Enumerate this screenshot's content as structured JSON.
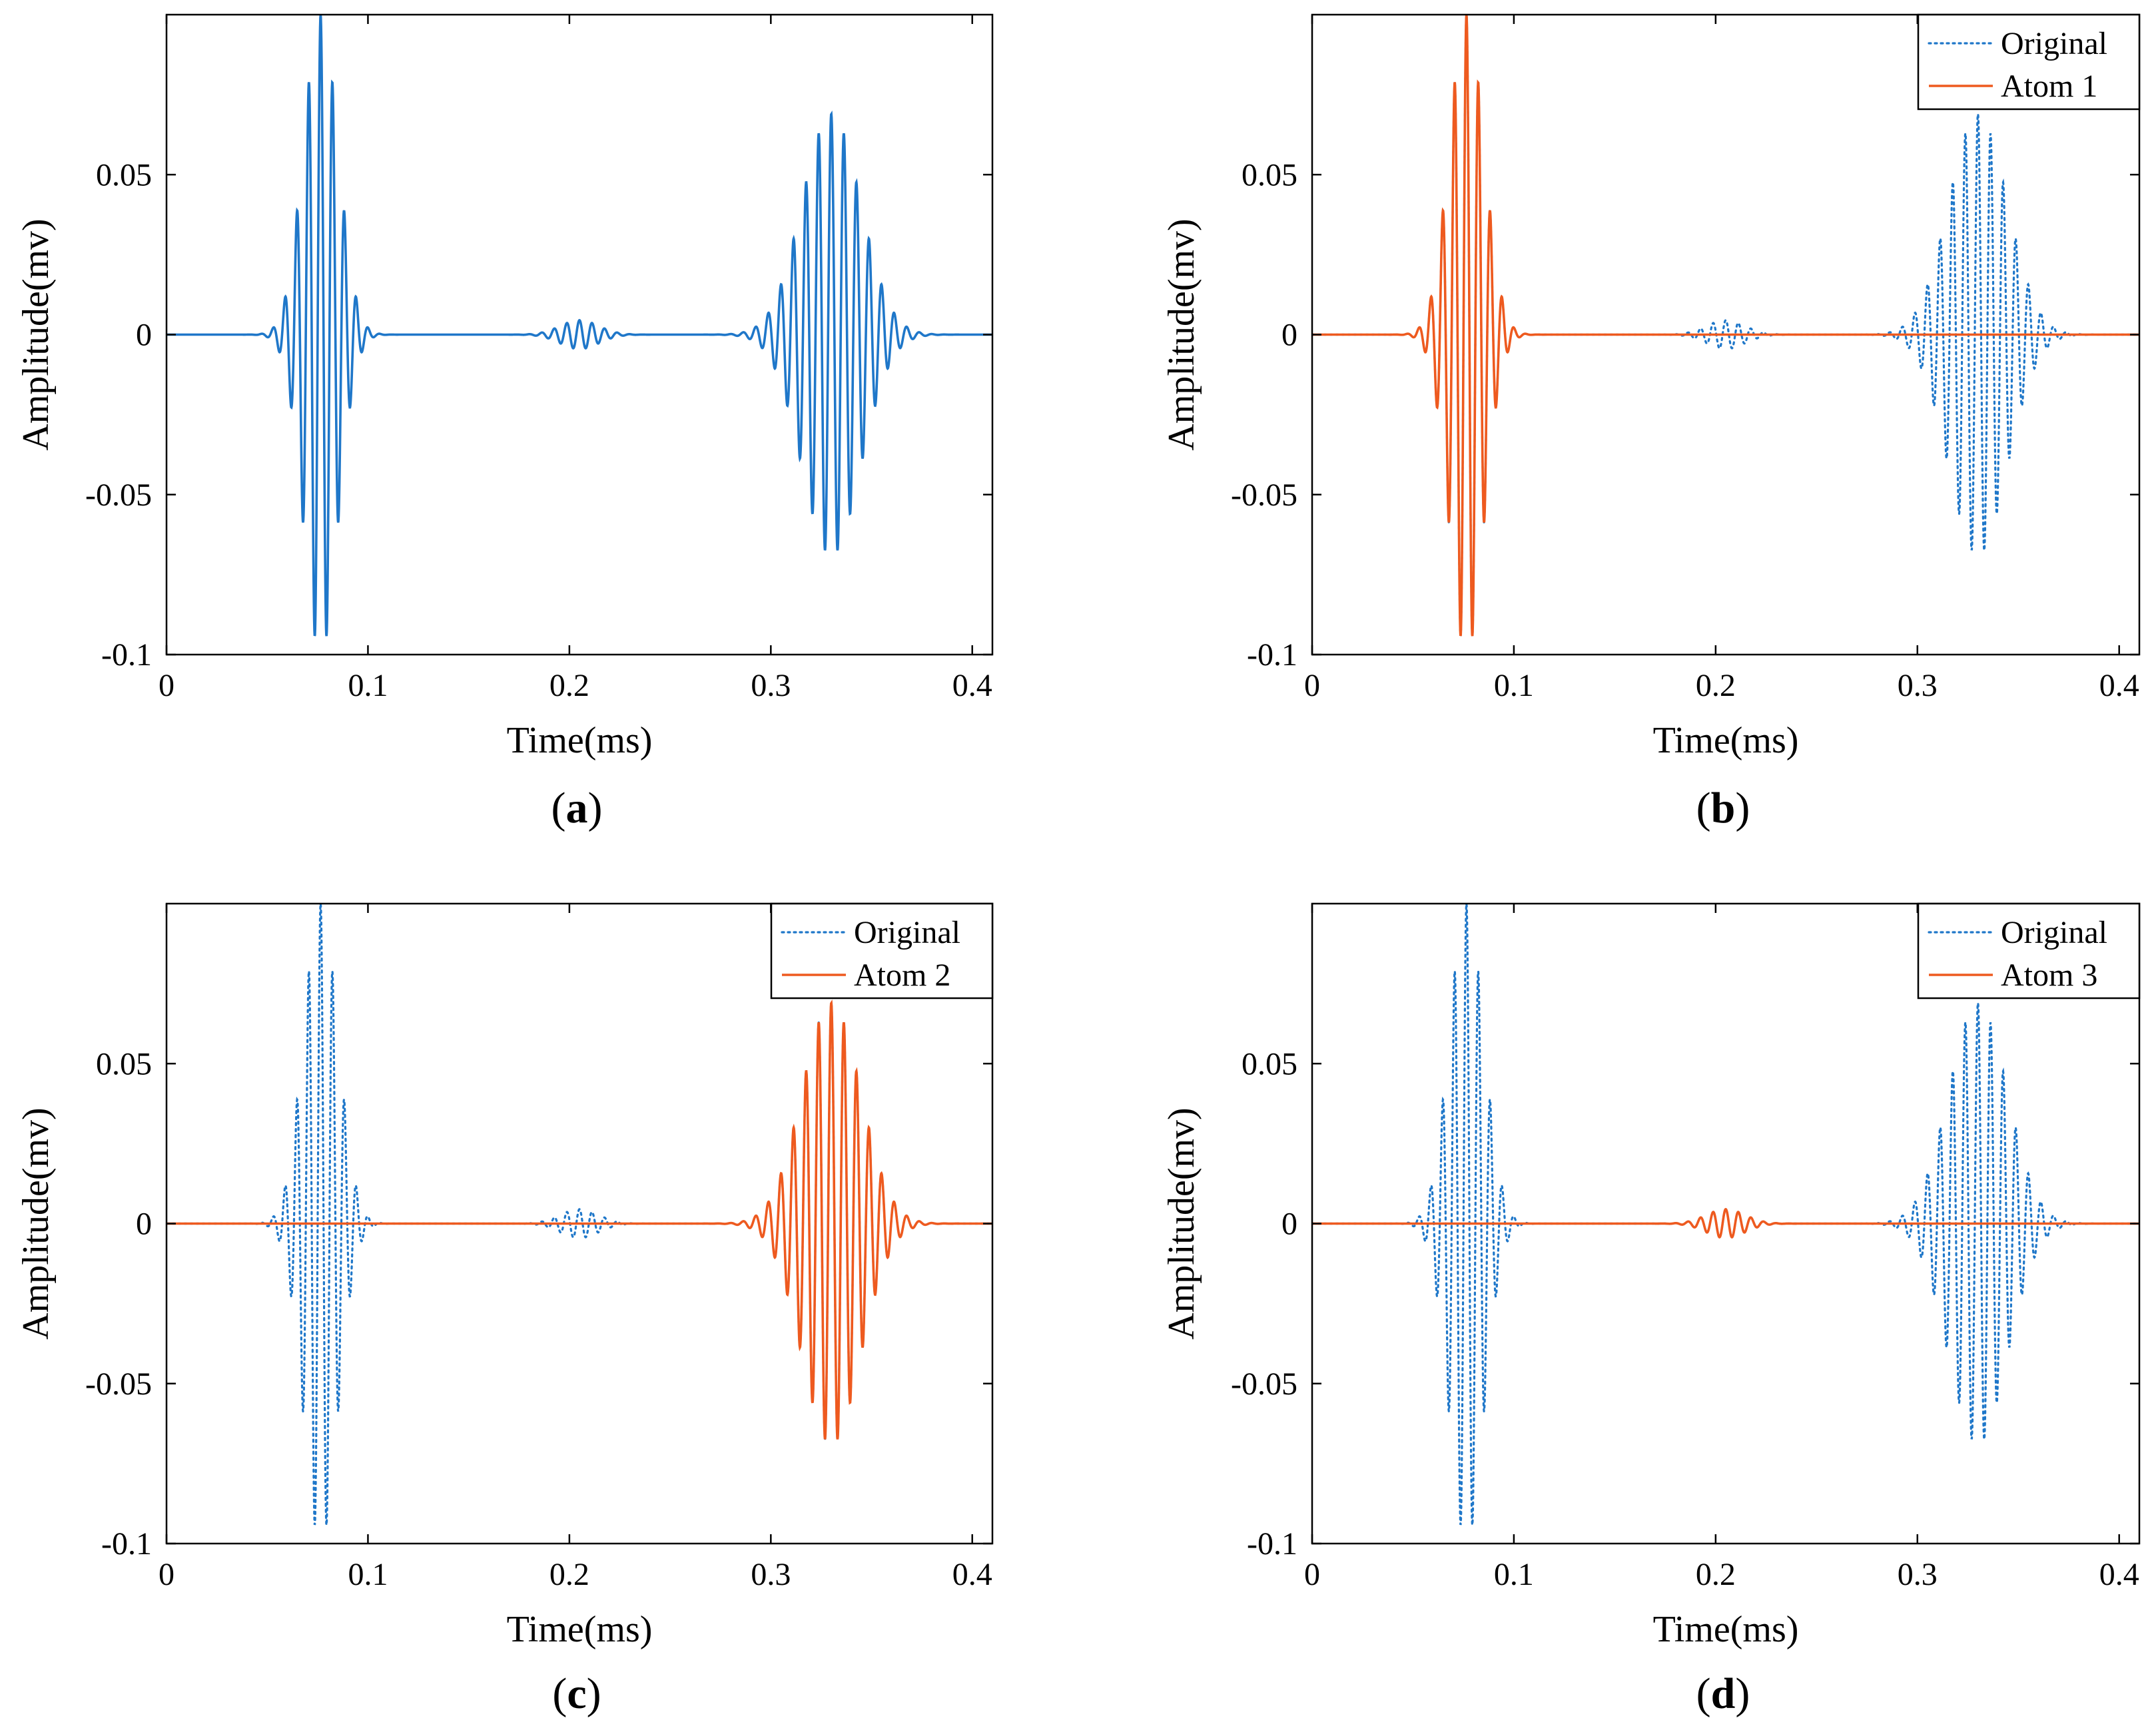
{
  "colors": {
    "original": "#1f77c9",
    "atom": "#ee5a1f",
    "axis": "#000000",
    "background": "#ffffff"
  },
  "chart_data": [
    {
      "id": "a",
      "type": "line",
      "caption_open": "(",
      "caption_letter": "a",
      "caption_close": ")",
      "xlabel": "Time(ms)",
      "ylabel": "Amplitude(mv)",
      "xlim": [
        0,
        0.41
      ],
      "ylim": [
        -0.1,
        0.1
      ],
      "xticks": [
        0,
        0.1,
        0.2,
        0.3,
        0.4
      ],
      "xtick_labels": [
        "0",
        "0.1",
        "0.2",
        "0.3",
        "0.4"
      ],
      "yticks": [
        0.05,
        0,
        -0.05,
        -0.1
      ],
      "ytick_labels": [
        "0.05",
        "0",
        "-0.05",
        "-0.1"
      ],
      "legend": null,
      "series": [
        {
          "name": "Original",
          "style": "solid",
          "color_key": "original",
          "wave_packets": [
            {
              "center_ms": 0.0765,
              "amplitude": 0.1,
              "width_ms": 0.0085,
              "freq_khz": 170
            },
            {
              "center_ms": 0.205,
              "amplitude": 0.0045,
              "width_ms": 0.0095,
              "freq_khz": 160
            },
            {
              "center_ms": 0.33,
              "amplitude": 0.069,
              "width_ms": 0.0145,
              "freq_khz": 160
            }
          ]
        }
      ]
    },
    {
      "id": "b",
      "type": "line",
      "caption_open": "(",
      "caption_letter": "b",
      "caption_close": ")",
      "xlabel": "Time(ms)",
      "ylabel": "Amplitude(mv)",
      "xlim": [
        0,
        0.41
      ],
      "ylim": [
        -0.1,
        0.1
      ],
      "xticks": [
        0,
        0.1,
        0.2,
        0.3,
        0.4
      ],
      "xtick_labels": [
        "0",
        "0.1",
        "0.2",
        "0.3",
        "0.4"
      ],
      "yticks": [
        0.05,
        0,
        -0.05,
        -0.1
      ],
      "ytick_labels": [
        "0.05",
        "0",
        "-0.05",
        "-0.1"
      ],
      "legend": {
        "location": "top-right",
        "entries": [
          "Original",
          "Atom 1"
        ]
      },
      "series": [
        {
          "name": "Original",
          "style": "dotted",
          "color_key": "original",
          "wave_packets": [
            {
              "center_ms": 0.0765,
              "amplitude": 0.1,
              "width_ms": 0.0085,
              "freq_khz": 170
            },
            {
              "center_ms": 0.205,
              "amplitude": 0.0045,
              "width_ms": 0.0095,
              "freq_khz": 160
            },
            {
              "center_ms": 0.33,
              "amplitude": 0.069,
              "width_ms": 0.0145,
              "freq_khz": 160
            }
          ]
        },
        {
          "name": "Atom 1",
          "style": "solid",
          "color_key": "atom",
          "wave_packets": [
            {
              "center_ms": 0.0765,
              "amplitude": 0.1,
              "width_ms": 0.0085,
              "freq_khz": 170
            }
          ]
        }
      ]
    },
    {
      "id": "c",
      "type": "line",
      "caption_open": "(",
      "caption_letter": "c",
      "caption_close": ")",
      "xlabel": "Time(ms)",
      "ylabel": "Amplitude(mv)",
      "xlim": [
        0,
        0.41
      ],
      "ylim": [
        -0.1,
        0.1
      ],
      "xticks": [
        0,
        0.1,
        0.2,
        0.3,
        0.4
      ],
      "xtick_labels": [
        "0",
        "0.1",
        "0.2",
        "0.3",
        "0.4"
      ],
      "yticks": [
        0.05,
        0,
        -0.05,
        -0.1
      ],
      "ytick_labels": [
        "0.05",
        "0",
        "-0.05",
        "-0.1"
      ],
      "legend": {
        "location": "top-right",
        "entries": [
          "Original",
          "Atom 2"
        ]
      },
      "series": [
        {
          "name": "Original",
          "style": "dotted",
          "color_key": "original",
          "wave_packets": [
            {
              "center_ms": 0.0765,
              "amplitude": 0.1,
              "width_ms": 0.0085,
              "freq_khz": 170
            },
            {
              "center_ms": 0.205,
              "amplitude": 0.0045,
              "width_ms": 0.0095,
              "freq_khz": 160
            },
            {
              "center_ms": 0.33,
              "amplitude": 0.069,
              "width_ms": 0.0145,
              "freq_khz": 160
            }
          ]
        },
        {
          "name": "Atom 2",
          "style": "solid",
          "color_key": "atom",
          "wave_packets": [
            {
              "center_ms": 0.33,
              "amplitude": 0.069,
              "width_ms": 0.0145,
              "freq_khz": 160
            }
          ]
        }
      ]
    },
    {
      "id": "d",
      "type": "line",
      "caption_open": "(",
      "caption_letter": "d",
      "caption_close": ")",
      "xlabel": "Time(ms)",
      "ylabel": "Amplitude(mv)",
      "xlim": [
        0,
        0.41
      ],
      "ylim": [
        -0.1,
        0.1
      ],
      "xticks": [
        0,
        0.1,
        0.2,
        0.3,
        0.4
      ],
      "xtick_labels": [
        "0",
        "0.1",
        "0.2",
        "0.3",
        "0.4"
      ],
      "yticks": [
        0.05,
        0,
        -0.05,
        -0.1
      ],
      "ytick_labels": [
        "0.05",
        "0",
        "-0.05",
        "-0.1"
      ],
      "legend": {
        "location": "top-right",
        "entries": [
          "Original",
          "Atom 3"
        ]
      },
      "series": [
        {
          "name": "Original",
          "style": "dotted",
          "color_key": "original",
          "wave_packets": [
            {
              "center_ms": 0.0765,
              "amplitude": 0.1,
              "width_ms": 0.0085,
              "freq_khz": 170
            },
            {
              "center_ms": 0.205,
              "amplitude": 0.0045,
              "width_ms": 0.0095,
              "freq_khz": 160
            },
            {
              "center_ms": 0.33,
              "amplitude": 0.069,
              "width_ms": 0.0145,
              "freq_khz": 160
            }
          ]
        },
        {
          "name": "Atom 3",
          "style": "solid",
          "color_key": "atom",
          "wave_packets": [
            {
              "center_ms": 0.205,
              "amplitude": 0.0045,
              "width_ms": 0.0095,
              "freq_khz": 160
            }
          ]
        }
      ]
    }
  ]
}
